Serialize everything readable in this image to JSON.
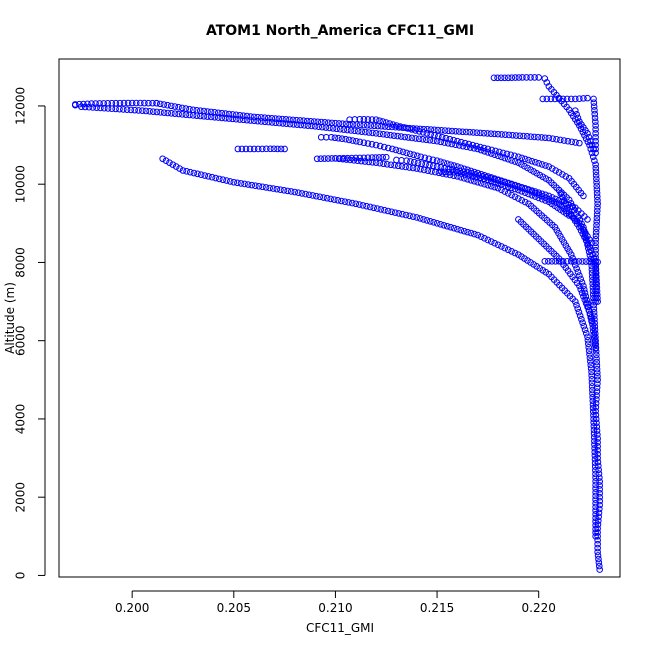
{
  "chart_data": {
    "type": "scatter",
    "title": "ATOM1 North_America CFC11_GMI",
    "xlabel": "CFC11_GMI",
    "ylabel": "Altitude (m)",
    "xlim": [
      0.1964,
      0.224
    ],
    "ylim": [
      -40,
      13200
    ],
    "x_ticks": [
      0.2,
      0.205,
      0.21,
      0.215,
      0.22
    ],
    "x_tick_labels": [
      "0.200",
      "0.205",
      "0.210",
      "0.215",
      "0.220"
    ],
    "y_ticks": [
      0,
      2000,
      4000,
      6000,
      8000,
      10000,
      12000
    ],
    "y_tick_labels": [
      "0",
      "2000",
      "4000",
      "6000",
      "8000",
      "10000",
      "12000"
    ],
    "grid": false,
    "legend": "none",
    "marker": "open-circle",
    "color": "#0000ff",
    "series": [
      {
        "points": [
          [
            0.223,
            150
          ],
          [
            0.2229,
            600
          ],
          [
            0.2229,
            1200
          ],
          [
            0.223,
            1800
          ],
          [
            0.223,
            2400
          ],
          [
            0.2229,
            3000
          ],
          [
            0.2229,
            3500
          ],
          [
            0.2228,
            4200
          ],
          [
            0.2229,
            5000
          ],
          [
            0.2228,
            6000
          ],
          [
            0.2227,
            7000
          ],
          [
            0.2226,
            8000
          ],
          [
            0.2222,
            8900
          ],
          [
            0.2215,
            9600
          ],
          [
            0.2205,
            10100
          ],
          [
            0.219,
            10550
          ],
          [
            0.217,
            10900
          ],
          [
            0.215,
            11100
          ],
          [
            0.212,
            11300
          ],
          [
            0.209,
            11480
          ],
          [
            0.206,
            11620
          ],
          [
            0.203,
            11760
          ],
          [
            0.2005,
            11880
          ],
          [
            0.199,
            11930
          ],
          [
            0.1975,
            11980
          ],
          [
            0.1972,
            12020
          ]
        ]
      },
      {
        "points": [
          [
            0.1972,
            12040
          ],
          [
            0.198,
            12060
          ],
          [
            0.199,
            12070
          ],
          [
            0.2,
            12075
          ],
          [
            0.2012,
            12070
          ]
        ]
      },
      {
        "points": [
          [
            0.2012,
            12070
          ],
          [
            0.203,
            11900
          ],
          [
            0.206,
            11720
          ],
          [
            0.21,
            11560
          ],
          [
            0.214,
            11420
          ],
          [
            0.218,
            11280
          ],
          [
            0.2205,
            11180
          ],
          [
            0.222,
            11050
          ]
        ]
      },
      {
        "points": [
          [
            0.2228,
            1000
          ],
          [
            0.2228,
            2500
          ],
          [
            0.2227,
            4000
          ],
          [
            0.2226,
            5200
          ],
          [
            0.2224,
            6100
          ],
          [
            0.2218,
            7000
          ],
          [
            0.2205,
            7700
          ],
          [
            0.219,
            8200
          ],
          [
            0.217,
            8700
          ],
          [
            0.214,
            9150
          ],
          [
            0.211,
            9500
          ],
          [
            0.208,
            9800
          ],
          [
            0.205,
            10050
          ],
          [
            0.2025,
            10350
          ],
          [
            0.2015,
            10650
          ]
        ]
      },
      {
        "points": [
          [
            0.2226,
            6500
          ],
          [
            0.2222,
            7400
          ],
          [
            0.2216,
            8200
          ],
          [
            0.2208,
            8900
          ],
          [
            0.2195,
            9500
          ],
          [
            0.218,
            9900
          ],
          [
            0.216,
            10200
          ],
          [
            0.214,
            10400
          ],
          [
            0.212,
            10550
          ],
          [
            0.21,
            10660
          ]
        ]
      },
      {
        "points": [
          [
            0.2091,
            10650
          ],
          [
            0.21,
            10660
          ],
          [
            0.211,
            10670
          ],
          [
            0.2118,
            10680
          ],
          [
            0.2125,
            10690
          ]
        ]
      },
      {
        "points": [
          [
            0.2052,
            10900
          ],
          [
            0.206,
            10900
          ],
          [
            0.2068,
            10905
          ],
          [
            0.2075,
            10900
          ]
        ]
      },
      {
        "points": [
          [
            0.2093,
            11200
          ],
          [
            0.2098,
            11200
          ],
          [
            0.2105,
            11150
          ],
          [
            0.2112,
            11080
          ],
          [
            0.212,
            11000
          ],
          [
            0.2128,
            10900
          ],
          [
            0.2135,
            10800
          ],
          [
            0.2142,
            10700
          ],
          [
            0.215,
            10600
          ],
          [
            0.216,
            10450
          ],
          [
            0.2175,
            10200
          ],
          [
            0.219,
            9950
          ],
          [
            0.2205,
            9700
          ],
          [
            0.2218,
            9400
          ],
          [
            0.2224,
            9100
          ]
        ]
      },
      {
        "points": [
          [
            0.2107,
            11650
          ],
          [
            0.2112,
            11660
          ],
          [
            0.212,
            11650
          ],
          [
            0.213,
            11500
          ],
          [
            0.2145,
            11300
          ],
          [
            0.216,
            11100
          ],
          [
            0.2175,
            10900
          ],
          [
            0.219,
            10700
          ],
          [
            0.2205,
            10450
          ],
          [
            0.2215,
            10150
          ],
          [
            0.2222,
            9700
          ]
        ]
      },
      {
        "points": [
          [
            0.213,
            10620
          ],
          [
            0.2135,
            10600
          ],
          [
            0.215,
            10450
          ],
          [
            0.2165,
            10300
          ],
          [
            0.218,
            10100
          ],
          [
            0.2195,
            9850
          ],
          [
            0.221,
            9500
          ],
          [
            0.222,
            9000
          ],
          [
            0.2226,
            8500
          ]
        ]
      },
      {
        "points": [
          [
            0.2152,
            10320
          ],
          [
            0.216,
            10300
          ],
          [
            0.2175,
            10100
          ],
          [
            0.219,
            9850
          ],
          [
            0.2205,
            9550
          ],
          [
            0.2215,
            9200
          ]
        ]
      },
      {
        "points": [
          [
            0.2178,
            12720
          ],
          [
            0.2185,
            12720
          ],
          [
            0.2192,
            12730
          ],
          [
            0.22,
            12730
          ],
          [
            0.2203,
            12700
          ],
          [
            0.2205,
            12500
          ],
          [
            0.221,
            12200
          ],
          [
            0.2215,
            11900
          ],
          [
            0.222,
            11500
          ],
          [
            0.2225,
            11000
          ],
          [
            0.2228,
            10500
          ],
          [
            0.2229,
            9500
          ],
          [
            0.2228,
            8500
          ],
          [
            0.2228,
            7000
          ]
        ]
      },
      {
        "points": [
          [
            0.2202,
            12180
          ],
          [
            0.221,
            12180
          ],
          [
            0.2218,
            12180
          ],
          [
            0.2224,
            12200
          ],
          [
            0.2227,
            12180
          ],
          [
            0.2228,
            11500
          ],
          [
            0.2228,
            10800
          ]
        ]
      },
      {
        "points": [
          [
            0.2218,
            11880
          ],
          [
            0.222,
            11600
          ],
          [
            0.2224,
            11300
          ],
          [
            0.2227,
            10900
          ]
        ]
      },
      {
        "points": [
          [
            0.2203,
            8030
          ],
          [
            0.221,
            8030
          ],
          [
            0.2218,
            8030
          ],
          [
            0.2225,
            8020
          ],
          [
            0.2229,
            8010
          ]
        ]
      },
      {
        "points": [
          [
            0.221,
            9850
          ],
          [
            0.2215,
            9300
          ],
          [
            0.222,
            8900
          ],
          [
            0.2225,
            8400
          ],
          [
            0.2228,
            8000
          ],
          [
            0.2229,
            7000
          ]
        ]
      },
      {
        "points": [
          [
            0.219,
            9100
          ],
          [
            0.22,
            8600
          ],
          [
            0.221,
            8100
          ],
          [
            0.222,
            7400
          ],
          [
            0.2226,
            6600
          ],
          [
            0.2228,
            5800
          ]
        ]
      }
    ]
  }
}
